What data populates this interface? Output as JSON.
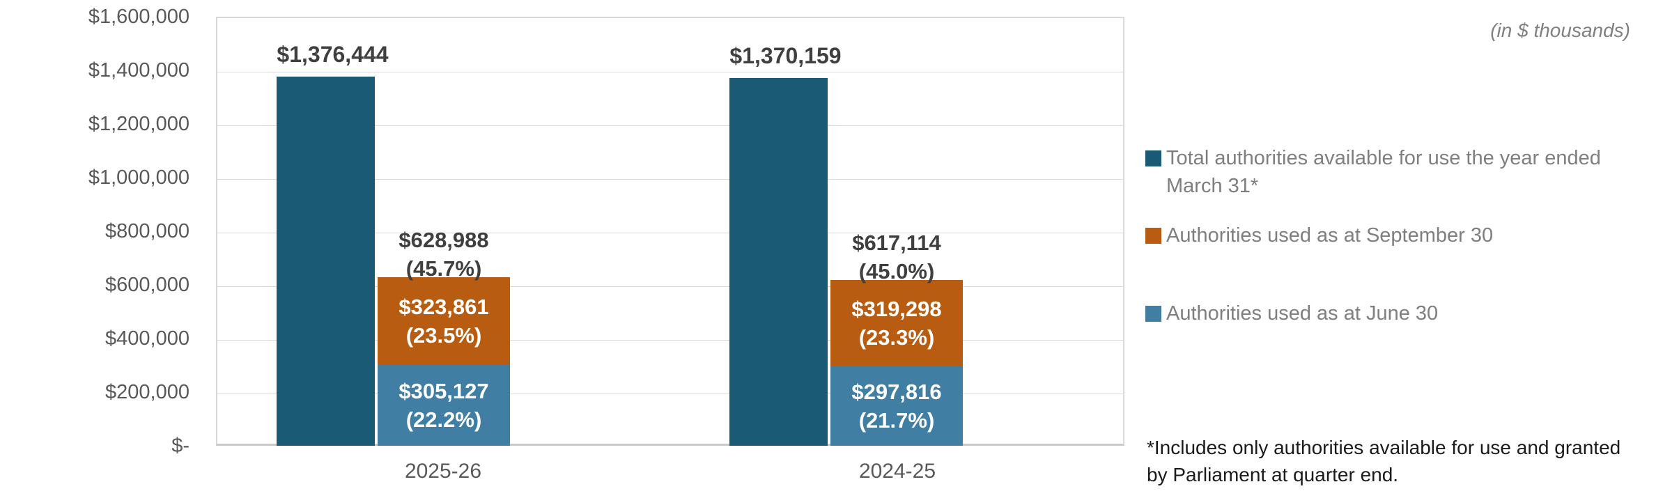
{
  "header": {
    "unit_note": "(in $ thousands)"
  },
  "footnote": "*Includes only authorities available for use and granted by Parliament at quarter end.",
  "legend": {
    "position": "right",
    "items": [
      {
        "label": "Total authorities available for use the year ended March 31*",
        "color": "#1A5A75"
      },
      {
        "label": "Authorities used as at September 30",
        "color": "#B85C11"
      },
      {
        "label": "Authorities used as at June 30",
        "color": "#407EA4"
      }
    ]
  },
  "chart_data": {
    "type": "bar",
    "title": "",
    "unit": "$ thousands",
    "categories": [
      "2025-26",
      "2024-25"
    ],
    "y_axis": {
      "min": 0,
      "max": 1600000,
      "tick_interval": 200000,
      "grid": true,
      "ticks": [
        "$1,600,000",
        "$1,400,000",
        "$1,200,000",
        "$1,000,000",
        "$800,000",
        "$600,000",
        "$400,000",
        "$200,000",
        "$-"
      ]
    },
    "series": [
      {
        "name": "Total authorities available for use the year ended March 31*",
        "color": "#1A5A75",
        "stack": "total",
        "values": [
          1376444,
          1370159
        ],
        "data_labels": [
          "$1,376,444",
          "$1,370,159"
        ]
      },
      {
        "name": "Authorities used as at September 30",
        "color": "#B85C11",
        "stack": "used",
        "values": [
          323861,
          319298
        ],
        "data_labels": [
          "$323,861",
          "$319,298"
        ],
        "pct_labels": [
          "(23.5%)",
          "(23.3%)"
        ]
      },
      {
        "name": "Authorities used as at June 30",
        "color": "#407EA4",
        "stack": "used",
        "values": [
          305127,
          297816
        ],
        "data_labels": [
          "$305,127",
          "$297,816"
        ],
        "pct_labels": [
          "(22.2%)",
          "(21.7%)"
        ]
      }
    ],
    "stack_totals": {
      "values": [
        628988,
        617114
      ],
      "data_labels": [
        "$628,988",
        "$617,114"
      ],
      "pct_labels": [
        "(45.7%)",
        "(45.0%)"
      ]
    },
    "grid_color": "#D9D9D9",
    "axis_text_color": "#595959",
    "data_label_color": "#3F3F3F",
    "legend_text_color": "#7F7F7F"
  }
}
